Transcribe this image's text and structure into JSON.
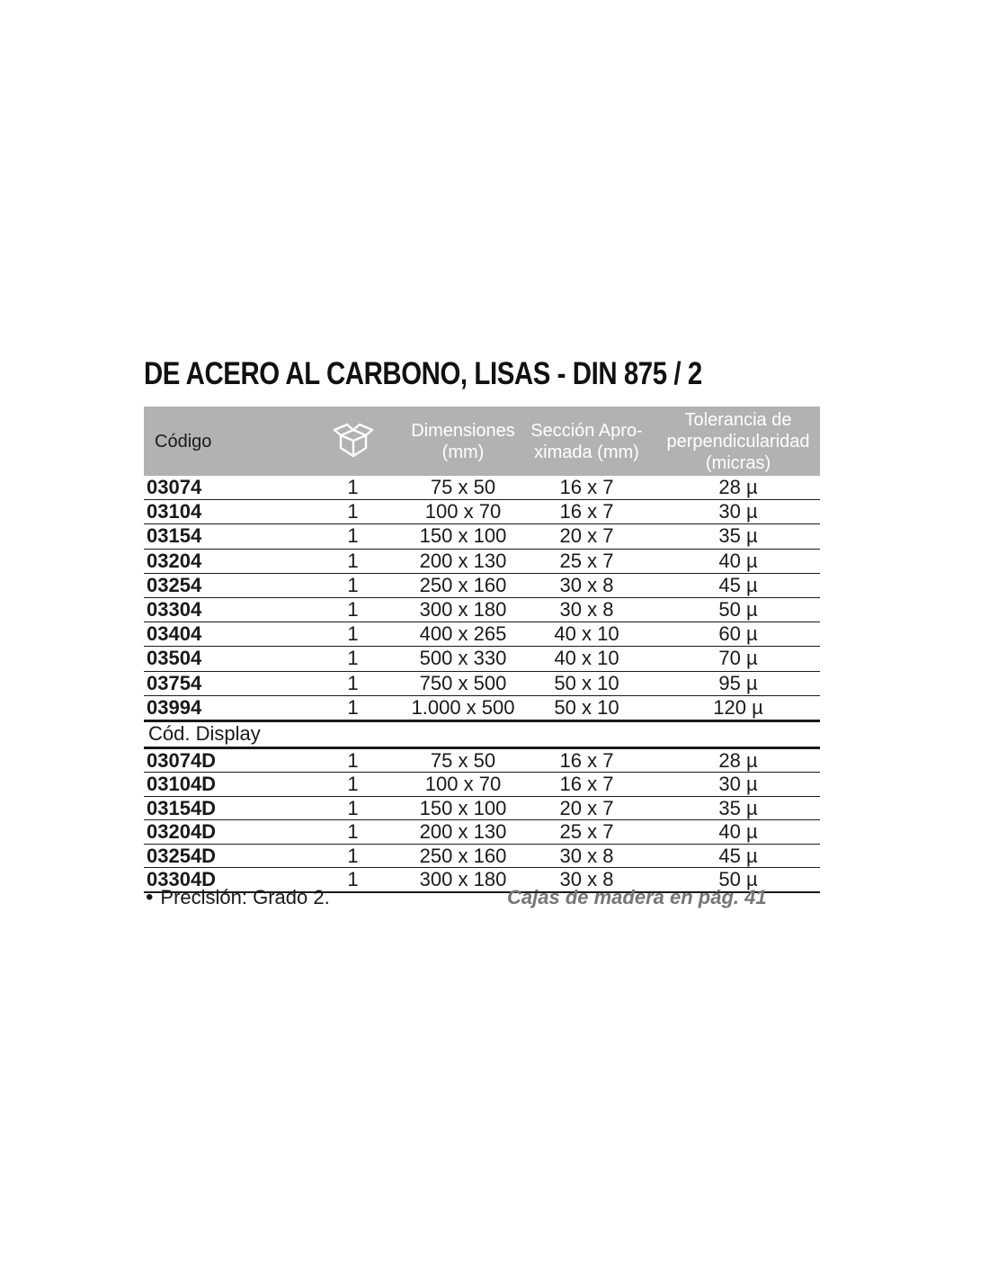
{
  "title": "DE ACERO AL CARBONO, LISAS - DIN 875 / 2",
  "colors": {
    "header_bg": "#b2b2b2",
    "header_text": "#ffffff",
    "body_text": "#1a1a1a",
    "reference_text": "#767676"
  },
  "table": {
    "header": {
      "columns": [
        {
          "label": "Código"
        },
        {
          "icon": "package-box-icon",
          "label": ""
        },
        {
          "label": "Dimensiones\n(mm)"
        },
        {
          "label": "Sección Apro-\nximada (mm)"
        },
        {
          "label": "Tolerancia de\nperpendicularidad\n(micras)"
        }
      ]
    },
    "rows": [
      [
        "03074",
        "1",
        "75 x 50",
        "16 x 7",
        "28 µ"
      ],
      [
        "03104",
        "1",
        "100 x 70",
        "16 x 7",
        "30 µ"
      ],
      [
        "03154",
        "1",
        "150 x 100",
        "20 x 7",
        "35 µ"
      ],
      [
        "03204",
        "1",
        "200 x 130",
        "25 x 7",
        "40 µ"
      ],
      [
        "03254",
        "1",
        "250 x 160",
        "30 x 8",
        "45 µ"
      ],
      [
        "03304",
        "1",
        "300 x 180",
        "30 x 8",
        "50 µ"
      ],
      [
        "03404",
        "1",
        "400 x 265",
        "40 x 10",
        "60 µ"
      ],
      [
        "03504",
        "1",
        "500 x 330",
        "40 x 10",
        "70 µ"
      ],
      [
        "03754",
        "1",
        "750 x 500",
        "50 x 10",
        "95 µ"
      ],
      [
        "03994",
        "1",
        "1.000 x 500",
        "50 x 10",
        "120 µ"
      ]
    ],
    "section_label": "Cód. Display",
    "display_rows": [
      [
        "03074D",
        "1",
        "75 x 50",
        "16 x 7",
        "28 µ"
      ],
      [
        "03104D",
        "1",
        "100 x 70",
        "16 x 7",
        "30 µ"
      ],
      [
        "03154D",
        "1",
        "150 x 100",
        "20 x 7",
        "35 µ"
      ],
      [
        "03204D",
        "1",
        "200 x 130",
        "25 x 7",
        "40 µ"
      ],
      [
        "03254D",
        "1",
        "250 x 160",
        "30 x 8",
        "45 µ"
      ],
      [
        "03304D",
        "1",
        "300 x 180",
        "30 x 8",
        "50 µ"
      ]
    ]
  },
  "footer": {
    "bullet": "•",
    "precision_note": "Precisión: Grado 2.",
    "reference_note": "Cajas de madera en pág. 41"
  }
}
